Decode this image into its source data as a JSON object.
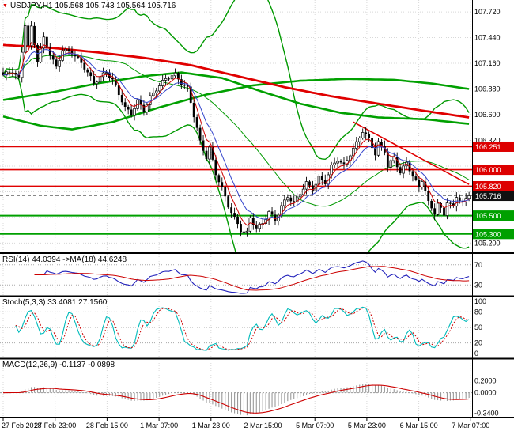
{
  "app": {
    "background": "#FFFFFF"
  },
  "time_axis": {
    "labels": [
      "27 Feb 2018",
      "27 Feb 23:00",
      "28 Feb 15:00",
      "1 Mar 07:00",
      "1 Mar 23:00",
      "2 Mar 15:00",
      "5 Mar 07:00",
      "5 Mar 23:00",
      "6 Mar 15:00",
      "7 Mar 07:00"
    ]
  },
  "chart_data": [
    {
      "type": "candlestick",
      "name": "main-price-chart",
      "symbol": "USDJPY",
      "timeframe": "H1",
      "title_marker": "▼",
      "title": "USDJPY,H1 105.568 105.743 105.564 105.716",
      "ohlc": {
        "open": 105.568,
        "high": 105.743,
        "low": 105.564,
        "close": 105.716
      },
      "bars": 150,
      "ylim": [
        105.1,
        107.85
      ],
      "y_ticks": [
        {
          "label": "107.720",
          "value": 107.72
        },
        {
          "label": "107.440",
          "value": 107.44
        },
        {
          "label": "107.160",
          "value": 107.16
        },
        {
          "label": "106.880",
          "value": 106.88
        },
        {
          "label": "106.600",
          "value": 106.6
        },
        {
          "label": "106.320",
          "value": 106.32
        },
        {
          "label": "105.200",
          "value": 105.2
        }
      ],
      "levels": {
        "resistance": [
          {
            "label": "106.251",
            "value": 106.251
          },
          {
            "label": "106.000",
            "value": 106.0
          },
          {
            "label": "105.820",
            "value": 105.82
          }
        ],
        "support": [
          {
            "label": "105.500",
            "value": 105.5
          },
          {
            "label": "105.300",
            "value": 105.3
          }
        ],
        "current": {
          "label": "105.716",
          "value": 105.716
        }
      },
      "trendline": [
        [
          112,
          106.52
        ],
        [
          149,
          105.84
        ]
      ],
      "price_waypoints": [
        [
          0,
          107.02
        ],
        [
          3,
          107.08
        ],
        [
          5,
          107.0
        ],
        [
          7,
          107.6
        ],
        [
          8,
          107.35
        ],
        [
          9,
          107.55
        ],
        [
          11,
          107.18
        ],
        [
          13,
          107.42
        ],
        [
          15,
          107.25
        ],
        [
          17,
          107.12
        ],
        [
          19,
          107.32
        ],
        [
          22,
          107.28
        ],
        [
          25,
          107.15
        ],
        [
          27,
          107.05
        ],
        [
          29,
          106.94
        ],
        [
          31,
          107.02
        ],
        [
          33,
          107.08
        ],
        [
          35,
          106.98
        ],
        [
          37,
          106.82
        ],
        [
          39,
          106.66
        ],
        [
          41,
          106.6
        ],
        [
          43,
          106.75
        ],
        [
          45,
          106.66
        ],
        [
          47,
          106.8
        ],
        [
          49,
          106.88
        ],
        [
          52,
          106.98
        ],
        [
          55,
          107.03
        ],
        [
          57,
          106.95
        ],
        [
          59,
          106.9
        ],
        [
          61,
          106.6
        ],
        [
          63,
          106.3
        ],
        [
          65,
          106.12
        ],
        [
          66,
          106.22
        ],
        [
          68,
          105.95
        ],
        [
          70,
          105.8
        ],
        [
          72,
          105.62
        ],
        [
          74,
          105.48
        ],
        [
          76,
          105.34
        ],
        [
          78,
          105.3
        ],
        [
          79,
          105.46
        ],
        [
          81,
          105.35
        ],
        [
          83,
          105.42
        ],
        [
          85,
          105.55
        ],
        [
          87,
          105.46
        ],
        [
          89,
          105.6
        ],
        [
          91,
          105.7
        ],
        [
          93,
          105.62
        ],
        [
          95,
          105.74
        ],
        [
          97,
          105.86
        ],
        [
          99,
          105.8
        ],
        [
          101,
          105.92
        ],
        [
          103,
          105.86
        ],
        [
          105,
          106.02
        ],
        [
          107,
          106.1
        ],
        [
          109,
          106.04
        ],
        [
          111,
          106.18
        ],
        [
          113,
          106.3
        ],
        [
          115,
          106.43
        ],
        [
          117,
          106.32
        ],
        [
          119,
          106.16
        ],
        [
          120,
          106.28
        ],
        [
          122,
          106.2
        ],
        [
          123,
          106.04
        ],
        [
          125,
          106.14
        ],
        [
          127,
          105.98
        ],
        [
          129,
          106.08
        ],
        [
          131,
          105.92
        ],
        [
          133,
          105.8
        ],
        [
          134,
          105.88
        ],
        [
          136,
          105.64
        ],
        [
          138,
          105.54
        ],
        [
          139,
          105.64
        ],
        [
          141,
          105.52
        ],
        [
          142,
          105.66
        ],
        [
          144,
          105.58
        ],
        [
          145,
          105.7
        ],
        [
          147,
          105.62
        ],
        [
          149,
          105.716
        ]
      ],
      "ma_red": [
        [
          0,
          107.36
        ],
        [
          15,
          107.33
        ],
        [
          30,
          107.28
        ],
        [
          45,
          107.22
        ],
        [
          60,
          107.14
        ],
        [
          75,
          107.02
        ],
        [
          90,
          106.9
        ],
        [
          105,
          106.8
        ],
        [
          120,
          106.72
        ],
        [
          135,
          106.64
        ],
        [
          149,
          106.57
        ]
      ],
      "ma_green_slow": [
        [
          0,
          106.58
        ],
        [
          12,
          106.48
        ],
        [
          22,
          106.44
        ],
        [
          35,
          106.52
        ],
        [
          50,
          106.68
        ],
        [
          65,
          106.82
        ],
        [
          80,
          106.92
        ],
        [
          95,
          106.97
        ],
        [
          110,
          106.99
        ],
        [
          125,
          106.98
        ],
        [
          137,
          106.94
        ],
        [
          149,
          106.88
        ]
      ],
      "ma_green_fast": [
        [
          0,
          106.76
        ],
        [
          15,
          106.84
        ],
        [
          30,
          106.94
        ],
        [
          45,
          107.02
        ],
        [
          57,
          107.06
        ],
        [
          70,
          107.0
        ],
        [
          82,
          106.86
        ],
        [
          95,
          106.72
        ],
        [
          108,
          106.62
        ],
        [
          120,
          106.57
        ],
        [
          135,
          106.55
        ],
        [
          149,
          106.5
        ]
      ],
      "bollinger": {
        "period": 34,
        "deviation": 2.8
      },
      "colors": {
        "up_candle": "#FFFFFF",
        "down_candle": "#000000",
        "bands": "#009900",
        "ma_thick_green": "#00A000",
        "ma_thick_red": "#E00000",
        "resistance": "#E00000",
        "support": "#00A000",
        "resistance_tag": "#DD0000",
        "support_tag": "#00A000",
        "current_tag": "#111111",
        "ema_fast": "#CC0000",
        "ema_slow": "#3344CC"
      }
    },
    {
      "type": "line",
      "name": "rsi",
      "title": "RSI(14) 44.0394 ->MA(18) 44.6248",
      "period": 14,
      "value": 44.0394,
      "ma_period": 18,
      "ma_value": 44.6248,
      "ylim": [
        10,
        90
      ],
      "levels": [
        {
          "label": "70",
          "value": 70
        },
        {
          "label": "30",
          "value": 30
        }
      ],
      "colors": {
        "line": "#2222BB",
        "ma": "#CC0000",
        "level": "#A8A8A8"
      }
    },
    {
      "type": "line",
      "name": "stochastic",
      "title": "Stoch(5,3,3) 33.4081 27.1560",
      "k_value": 33.4081,
      "d_value": 27.156,
      "k_period": 5,
      "ylim": [
        -8,
        108
      ],
      "axis_labels": [
        {
          "label": "100",
          "value": 100
        },
        {
          "label": "80",
          "value": 80
        },
        {
          "label": "50",
          "value": 50
        },
        {
          "label": "20",
          "value": 20
        },
        {
          "label": "0",
          "value": 0
        }
      ],
      "dotted_levels": [
        80,
        50,
        20
      ],
      "colors": {
        "k": "#00BBBB",
        "d": "#CC0000",
        "level": "#A8A8A8"
      }
    },
    {
      "type": "bar",
      "name": "macd",
      "title": "MACD(12,26,9) -0.1137 -0.0898",
      "macd_value": -0.1137,
      "signal_value": -0.0898,
      "fast": 12,
      "slow": 26,
      "signal_period": 9,
      "ylim": [
        -0.4,
        0.55
      ],
      "axis_labels": [
        {
          "label": "0.2000",
          "value": 0.2
        },
        {
          "label": "0.0000",
          "value": 0.0
        },
        {
          "label": "-0.3400",
          "value": -0.34
        }
      ],
      "colors": {
        "histogram": "#9A9A9A",
        "signal": "#CC0000",
        "zero": "#999999"
      }
    }
  ]
}
